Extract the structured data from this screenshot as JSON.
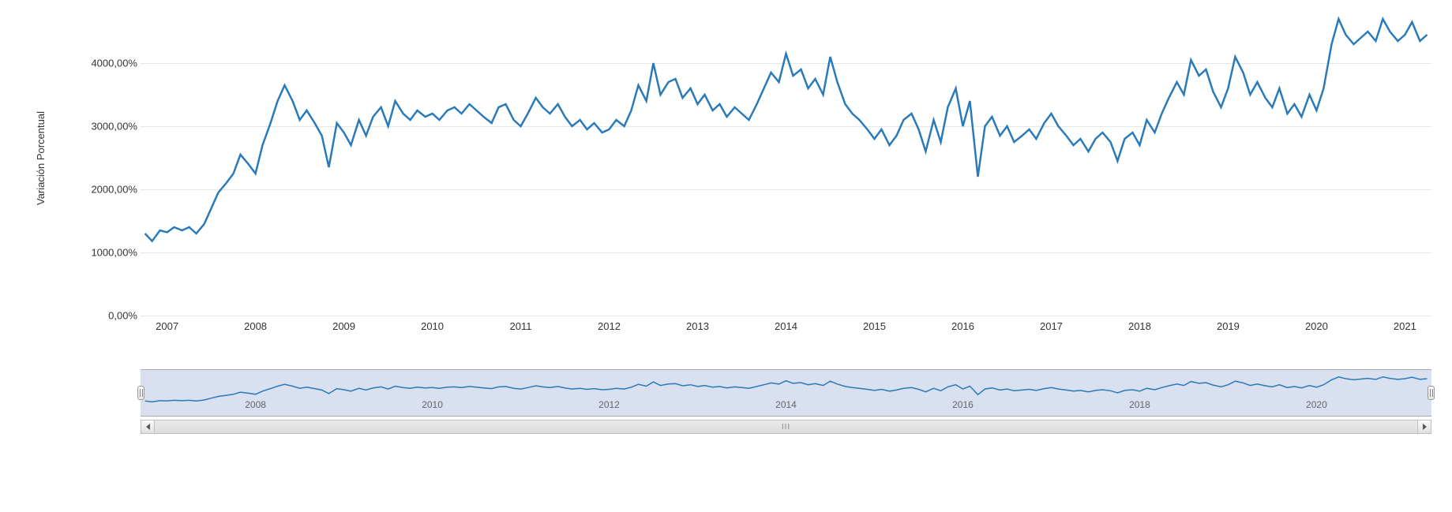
{
  "chart": {
    "type": "line",
    "y_axis_title": "Variación Porcentual",
    "background_color": "#ffffff",
    "grid_color": "#e6e6e6",
    "line_color": "#2a7ab9",
    "line_width": 2.5,
    "text_color": "#333333",
    "tick_fontsize": 13,
    "axis_title_fontsize": 13,
    "x_min": 2006.7,
    "x_max": 2021.3,
    "y_min": 0,
    "y_max": 4900,
    "y_ticks": [
      {
        "value": 0,
        "label": "0,00%"
      },
      {
        "value": 1000,
        "label": "1000,00%"
      },
      {
        "value": 2000,
        "label": "2000,00%"
      },
      {
        "value": 3000,
        "label": "3000,00%"
      },
      {
        "value": 4000,
        "label": "4000,00%"
      }
    ],
    "x_ticks": [
      {
        "value": 2007,
        "label": "2007"
      },
      {
        "value": 2008,
        "label": "2008"
      },
      {
        "value": 2009,
        "label": "2009"
      },
      {
        "value": 2010,
        "label": "2010"
      },
      {
        "value": 2011,
        "label": "2011"
      },
      {
        "value": 2012,
        "label": "2012"
      },
      {
        "value": 2013,
        "label": "2013"
      },
      {
        "value": 2014,
        "label": "2014"
      },
      {
        "value": 2015,
        "label": "2015"
      },
      {
        "value": 2016,
        "label": "2016"
      },
      {
        "value": 2017,
        "label": "2017"
      },
      {
        "value": 2018,
        "label": "2018"
      },
      {
        "value": 2019,
        "label": "2019"
      },
      {
        "value": 2020,
        "label": "2020"
      },
      {
        "value": 2021,
        "label": "2021"
      }
    ],
    "data": [
      {
        "x": 2006.75,
        "y": 1300
      },
      {
        "x": 2006.83,
        "y": 1180
      },
      {
        "x": 2006.92,
        "y": 1350
      },
      {
        "x": 2007.0,
        "y": 1320
      },
      {
        "x": 2007.08,
        "y": 1400
      },
      {
        "x": 2007.17,
        "y": 1350
      },
      {
        "x": 2007.25,
        "y": 1400
      },
      {
        "x": 2007.33,
        "y": 1300
      },
      {
        "x": 2007.42,
        "y": 1450
      },
      {
        "x": 2007.5,
        "y": 1700
      },
      {
        "x": 2007.58,
        "y": 1950
      },
      {
        "x": 2007.67,
        "y": 2100
      },
      {
        "x": 2007.75,
        "y": 2250
      },
      {
        "x": 2007.83,
        "y": 2550
      },
      {
        "x": 2007.92,
        "y": 2400
      },
      {
        "x": 2008.0,
        "y": 2250
      },
      {
        "x": 2008.08,
        "y": 2700
      },
      {
        "x": 2008.17,
        "y": 3050
      },
      {
        "x": 2008.25,
        "y": 3400
      },
      {
        "x": 2008.33,
        "y": 3650
      },
      {
        "x": 2008.42,
        "y": 3400
      },
      {
        "x": 2008.5,
        "y": 3100
      },
      {
        "x": 2008.58,
        "y": 3250
      },
      {
        "x": 2008.67,
        "y": 3050
      },
      {
        "x": 2008.75,
        "y": 2850
      },
      {
        "x": 2008.83,
        "y": 2350
      },
      {
        "x": 2008.92,
        "y": 3050
      },
      {
        "x": 2009.0,
        "y": 2900
      },
      {
        "x": 2009.08,
        "y": 2700
      },
      {
        "x": 2009.17,
        "y": 3100
      },
      {
        "x": 2009.25,
        "y": 2850
      },
      {
        "x": 2009.33,
        "y": 3150
      },
      {
        "x": 2009.42,
        "y": 3300
      },
      {
        "x": 2009.5,
        "y": 3000
      },
      {
        "x": 2009.58,
        "y": 3400
      },
      {
        "x": 2009.67,
        "y": 3200
      },
      {
        "x": 2009.75,
        "y": 3100
      },
      {
        "x": 2009.83,
        "y": 3250
      },
      {
        "x": 2009.92,
        "y": 3150
      },
      {
        "x": 2010.0,
        "y": 3200
      },
      {
        "x": 2010.08,
        "y": 3100
      },
      {
        "x": 2010.17,
        "y": 3250
      },
      {
        "x": 2010.25,
        "y": 3300
      },
      {
        "x": 2010.33,
        "y": 3200
      },
      {
        "x": 2010.42,
        "y": 3350
      },
      {
        "x": 2010.5,
        "y": 3250
      },
      {
        "x": 2010.58,
        "y": 3150
      },
      {
        "x": 2010.67,
        "y": 3050
      },
      {
        "x": 2010.75,
        "y": 3300
      },
      {
        "x": 2010.83,
        "y": 3350
      },
      {
        "x": 2010.92,
        "y": 3100
      },
      {
        "x": 2011.0,
        "y": 3000
      },
      {
        "x": 2011.08,
        "y": 3200
      },
      {
        "x": 2011.17,
        "y": 3450
      },
      {
        "x": 2011.25,
        "y": 3300
      },
      {
        "x": 2011.33,
        "y": 3200
      },
      {
        "x": 2011.42,
        "y": 3350
      },
      {
        "x": 2011.5,
        "y": 3150
      },
      {
        "x": 2011.58,
        "y": 3000
      },
      {
        "x": 2011.67,
        "y": 3100
      },
      {
        "x": 2011.75,
        "y": 2950
      },
      {
        "x": 2011.83,
        "y": 3050
      },
      {
        "x": 2011.92,
        "y": 2900
      },
      {
        "x": 2012.0,
        "y": 2950
      },
      {
        "x": 2012.08,
        "y": 3100
      },
      {
        "x": 2012.17,
        "y": 3000
      },
      {
        "x": 2012.25,
        "y": 3250
      },
      {
        "x": 2012.33,
        "y": 3650
      },
      {
        "x": 2012.42,
        "y": 3400
      },
      {
        "x": 2012.5,
        "y": 4000
      },
      {
        "x": 2012.58,
        "y": 3500
      },
      {
        "x": 2012.67,
        "y": 3700
      },
      {
        "x": 2012.75,
        "y": 3750
      },
      {
        "x": 2012.83,
        "y": 3450
      },
      {
        "x": 2012.92,
        "y": 3600
      },
      {
        "x": 2013.0,
        "y": 3350
      },
      {
        "x": 2013.08,
        "y": 3500
      },
      {
        "x": 2013.17,
        "y": 3250
      },
      {
        "x": 2013.25,
        "y": 3350
      },
      {
        "x": 2013.33,
        "y": 3150
      },
      {
        "x": 2013.42,
        "y": 3300
      },
      {
        "x": 2013.5,
        "y": 3200
      },
      {
        "x": 2013.58,
        "y": 3100
      },
      {
        "x": 2013.67,
        "y": 3350
      },
      {
        "x": 2013.75,
        "y": 3600
      },
      {
        "x": 2013.83,
        "y": 3850
      },
      {
        "x": 2013.92,
        "y": 3700
      },
      {
        "x": 2014.0,
        "y": 4150
      },
      {
        "x": 2014.08,
        "y": 3800
      },
      {
        "x": 2014.17,
        "y": 3900
      },
      {
        "x": 2014.25,
        "y": 3600
      },
      {
        "x": 2014.33,
        "y": 3750
      },
      {
        "x": 2014.42,
        "y": 3500
      },
      {
        "x": 2014.5,
        "y": 4100
      },
      {
        "x": 2014.58,
        "y": 3700
      },
      {
        "x": 2014.67,
        "y": 3350
      },
      {
        "x": 2014.75,
        "y": 3200
      },
      {
        "x": 2014.83,
        "y": 3100
      },
      {
        "x": 2014.92,
        "y": 2950
      },
      {
        "x": 2015.0,
        "y": 2800
      },
      {
        "x": 2015.08,
        "y": 2950
      },
      {
        "x": 2015.17,
        "y": 2700
      },
      {
        "x": 2015.25,
        "y": 2850
      },
      {
        "x": 2015.33,
        "y": 3100
      },
      {
        "x": 2015.42,
        "y": 3200
      },
      {
        "x": 2015.5,
        "y": 2950
      },
      {
        "x": 2015.58,
        "y": 2600
      },
      {
        "x": 2015.67,
        "y": 3100
      },
      {
        "x": 2015.75,
        "y": 2750
      },
      {
        "x": 2015.83,
        "y": 3300
      },
      {
        "x": 2015.92,
        "y": 3600
      },
      {
        "x": 2016.0,
        "y": 3000
      },
      {
        "x": 2016.08,
        "y": 3400
      },
      {
        "x": 2016.17,
        "y": 2200
      },
      {
        "x": 2016.25,
        "y": 3000
      },
      {
        "x": 2016.33,
        "y": 3150
      },
      {
        "x": 2016.42,
        "y": 2850
      },
      {
        "x": 2016.5,
        "y": 3000
      },
      {
        "x": 2016.58,
        "y": 2750
      },
      {
        "x": 2016.67,
        "y": 2850
      },
      {
        "x": 2016.75,
        "y": 2950
      },
      {
        "x": 2016.83,
        "y": 2800
      },
      {
        "x": 2016.92,
        "y": 3050
      },
      {
        "x": 2017.0,
        "y": 3200
      },
      {
        "x": 2017.08,
        "y": 3000
      },
      {
        "x": 2017.17,
        "y": 2850
      },
      {
        "x": 2017.25,
        "y": 2700
      },
      {
        "x": 2017.33,
        "y": 2800
      },
      {
        "x": 2017.42,
        "y": 2600
      },
      {
        "x": 2017.5,
        "y": 2800
      },
      {
        "x": 2017.58,
        "y": 2900
      },
      {
        "x": 2017.67,
        "y": 2750
      },
      {
        "x": 2017.75,
        "y": 2450
      },
      {
        "x": 2017.83,
        "y": 2800
      },
      {
        "x": 2017.92,
        "y": 2900
      },
      {
        "x": 2018.0,
        "y": 2700
      },
      {
        "x": 2018.08,
        "y": 3100
      },
      {
        "x": 2018.17,
        "y": 2900
      },
      {
        "x": 2018.25,
        "y": 3200
      },
      {
        "x": 2018.33,
        "y": 3450
      },
      {
        "x": 2018.42,
        "y": 3700
      },
      {
        "x": 2018.5,
        "y": 3500
      },
      {
        "x": 2018.58,
        "y": 4050
      },
      {
        "x": 2018.67,
        "y": 3800
      },
      {
        "x": 2018.75,
        "y": 3900
      },
      {
        "x": 2018.83,
        "y": 3550
      },
      {
        "x": 2018.92,
        "y": 3300
      },
      {
        "x": 2019.0,
        "y": 3600
      },
      {
        "x": 2019.08,
        "y": 4100
      },
      {
        "x": 2019.17,
        "y": 3850
      },
      {
        "x": 2019.25,
        "y": 3500
      },
      {
        "x": 2019.33,
        "y": 3700
      },
      {
        "x": 2019.42,
        "y": 3450
      },
      {
        "x": 2019.5,
        "y": 3300
      },
      {
        "x": 2019.58,
        "y": 3600
      },
      {
        "x": 2019.67,
        "y": 3200
      },
      {
        "x": 2019.75,
        "y": 3350
      },
      {
        "x": 2019.83,
        "y": 3150
      },
      {
        "x": 2019.92,
        "y": 3500
      },
      {
        "x": 2020.0,
        "y": 3250
      },
      {
        "x": 2020.08,
        "y": 3600
      },
      {
        "x": 2020.17,
        "y": 4300
      },
      {
        "x": 2020.25,
        "y": 4700
      },
      {
        "x": 2020.33,
        "y": 4450
      },
      {
        "x": 2020.42,
        "y": 4300
      },
      {
        "x": 2020.5,
        "y": 4400
      },
      {
        "x": 2020.58,
        "y": 4500
      },
      {
        "x": 2020.67,
        "y": 4350
      },
      {
        "x": 2020.75,
        "y": 4700
      },
      {
        "x": 2020.83,
        "y": 4500
      },
      {
        "x": 2020.92,
        "y": 4350
      },
      {
        "x": 2021.0,
        "y": 4450
      },
      {
        "x": 2021.08,
        "y": 4650
      },
      {
        "x": 2021.17,
        "y": 4350
      },
      {
        "x": 2021.25,
        "y": 4450
      }
    ]
  },
  "navigator": {
    "background_color": "rgba(102,133,194,0.25)",
    "line_color": "#2a7ab9",
    "line_width": 1.5,
    "label_color": "#666666",
    "label_fontsize": 12,
    "x_labels": [
      {
        "value": 2008,
        "label": "2008"
      },
      {
        "value": 2010,
        "label": "2010"
      },
      {
        "value": 2012,
        "label": "2012"
      },
      {
        "value": 2014,
        "label": "2014"
      },
      {
        "value": 2016,
        "label": "2016"
      },
      {
        "value": 2018,
        "label": "2018"
      },
      {
        "value": 2020,
        "label": "2020"
      }
    ]
  },
  "scrollbar": {
    "grip_label": "III"
  }
}
